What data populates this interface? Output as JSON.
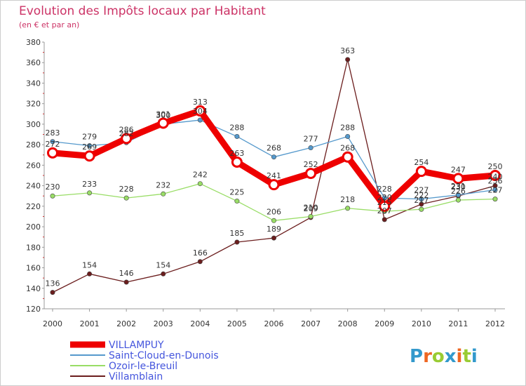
{
  "chart_data": {
    "type": "line",
    "title": "Evolution des Impôts locaux par Habitant",
    "subtitle": "(en € et par an)",
    "xlabel": "",
    "ylabel": "",
    "x": [
      "2000",
      "2001",
      "2002",
      "2003",
      "2004",
      "2005",
      "2006",
      "2007",
      "2008",
      "2009",
      "2010",
      "2011",
      "2012"
    ],
    "yticks": [
      120,
      140,
      160,
      180,
      200,
      220,
      240,
      260,
      280,
      300,
      320,
      340,
      360,
      380
    ],
    "ylim": [
      120,
      380
    ],
    "grid": false,
    "legend_position": "bottom-left",
    "series": [
      {
        "name": "VILLAMPUY",
        "color": "#ee0000",
        "values": [
          272,
          269,
          286,
          301,
          313,
          263,
          241,
          252,
          268,
          220,
          254,
          247,
          250
        ]
      },
      {
        "name": "Saint-Cloud-en-Dunois",
        "color": "#5599cc",
        "values": [
          283,
          279,
          282,
          300,
          304,
          288,
          268,
          277,
          288,
          228,
          227,
          231,
          236
        ]
      },
      {
        "name": "Ozoir-le-Breuil",
        "color": "#99dd66",
        "values": [
          230,
          233,
          228,
          232,
          242,
          225,
          206,
          210,
          218,
          215,
          217,
          226,
          227
        ]
      },
      {
        "name": "Villamblain",
        "color": "#6b1d1d",
        "values": [
          136,
          154,
          146,
          154,
          166,
          185,
          189,
          209,
          363,
          207,
          222,
          230,
          240
        ]
      }
    ]
  },
  "logo": {
    "text": "Proxiti"
  }
}
